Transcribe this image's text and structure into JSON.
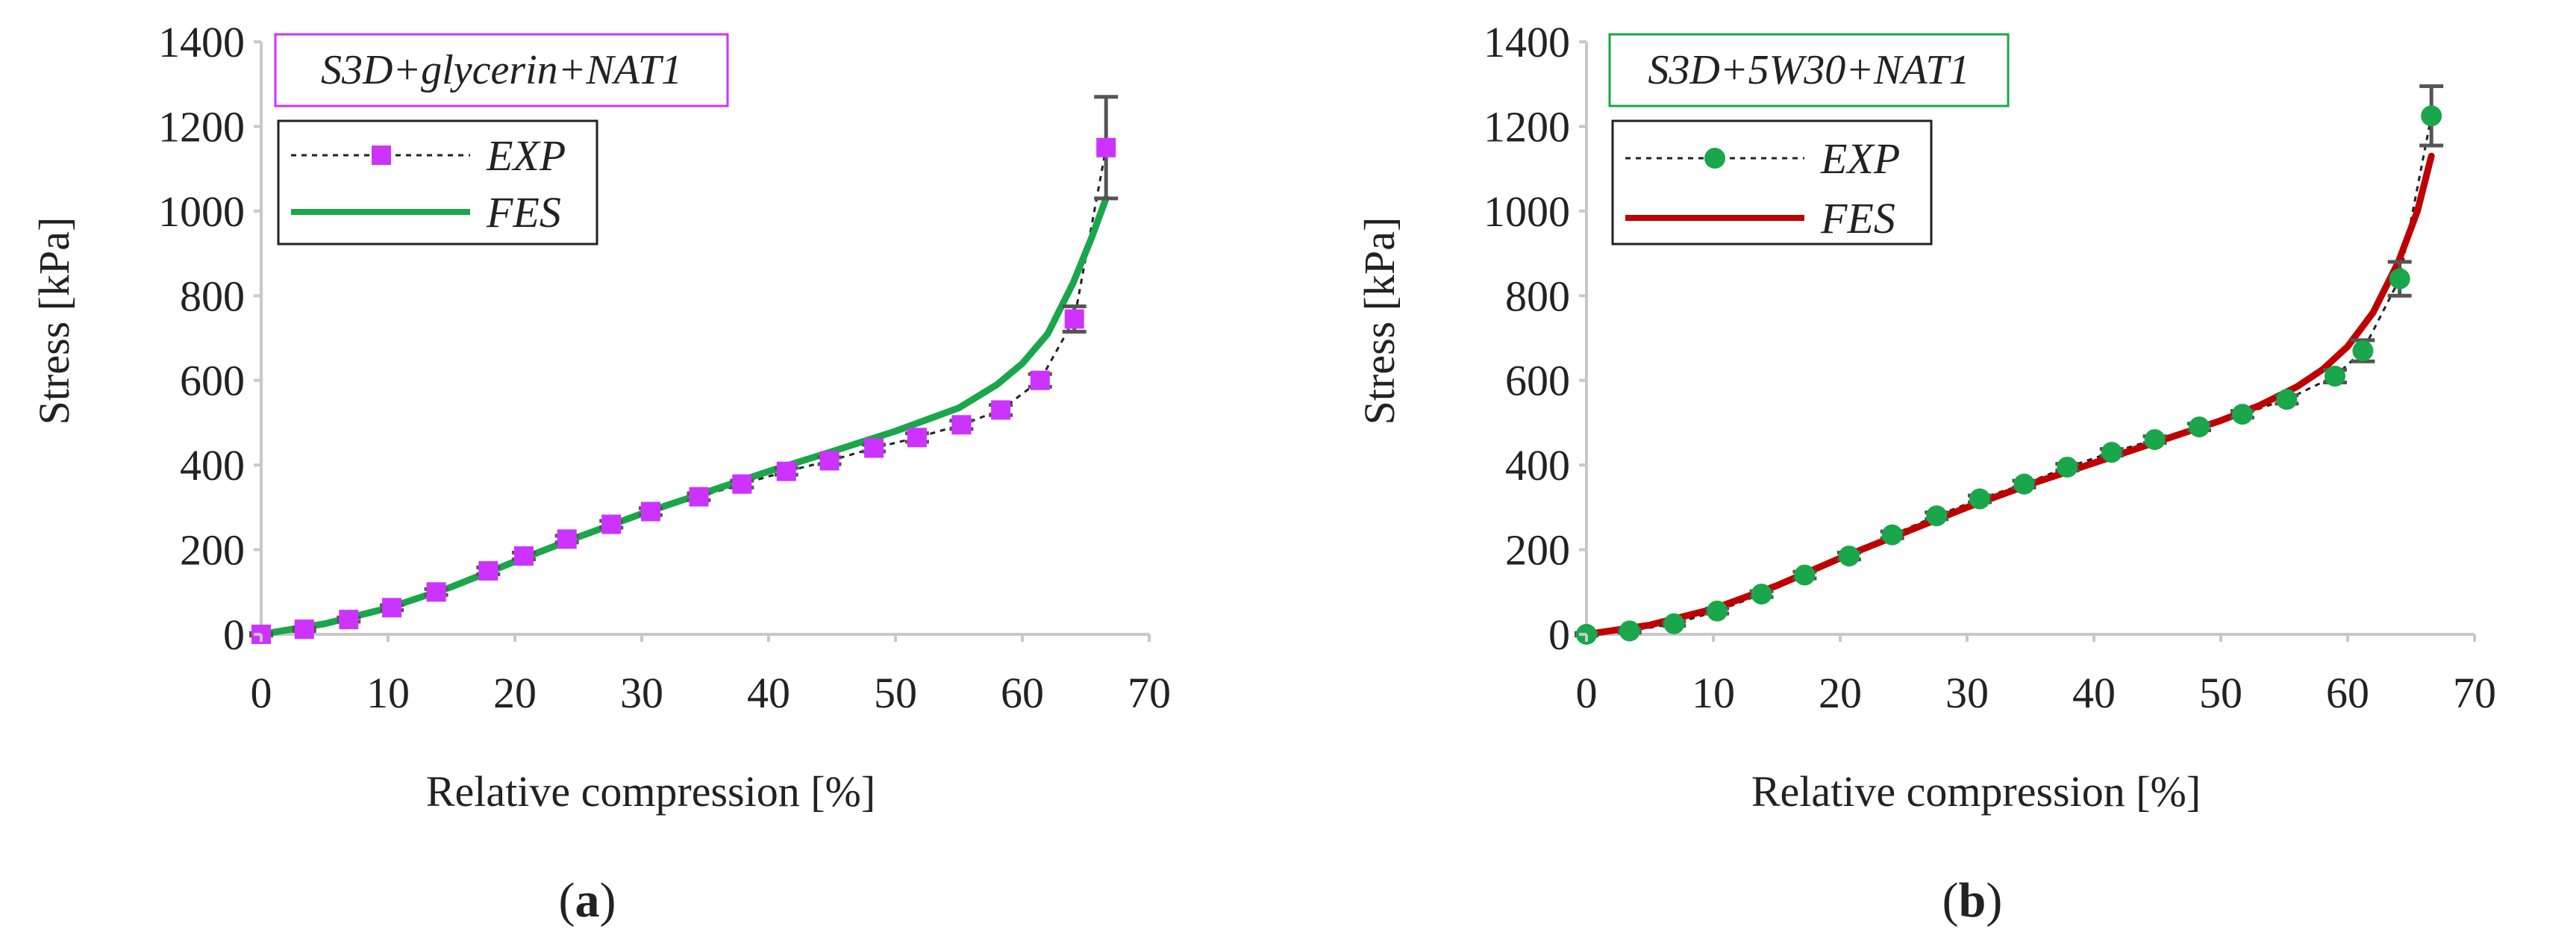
{
  "chart_data": [
    {
      "type": "line",
      "panel": "a",
      "caption_label": "a",
      "title": "S3D+glycerin+NAT1",
      "xlabel": "Relative compression [%]",
      "ylabel": "Stress [kPa]",
      "xlim": [
        0,
        70
      ],
      "ylim": [
        0,
        1400
      ],
      "xticks": [
        "0",
        "10",
        "20",
        "30",
        "40",
        "50",
        "60",
        "70"
      ],
      "yticks": [
        "0",
        "200",
        "400",
        "600",
        "800",
        "1000",
        "1200",
        "1400"
      ],
      "legend": [
        {
          "label": "EXP",
          "style": "dotted-square",
          "color": "#cc33ff"
        },
        {
          "label": "FES",
          "style": "solid-line",
          "color": "#1aa64a"
        }
      ],
      "title_border_color": "#cc33ff",
      "series": [
        {
          "name": "EXP",
          "color": "#cc33ff",
          "marker": "square",
          "x": [
            0,
            3.4,
            6.9,
            10.3,
            13.8,
            17.9,
            20.7,
            24.1,
            27.6,
            30.7,
            34.5,
            37.9,
            41.4,
            44.8,
            48.3,
            51.7,
            55.2,
            58.3,
            61.4,
            64.1,
            66.6
          ],
          "y": [
            0,
            12,
            35,
            63,
            100,
            150,
            185,
            225,
            260,
            290,
            325,
            355,
            385,
            410,
            440,
            465,
            495,
            530,
            600,
            745,
            1150
          ],
          "error": [
            3,
            4,
            5,
            6,
            7,
            8,
            8,
            8,
            8,
            8,
            8,
            8,
            8,
            8,
            8,
            10,
            10,
            12,
            15,
            30,
            120
          ]
        },
        {
          "name": "FES",
          "color": "#1aa64a",
          "marker": "none",
          "x": [
            0,
            5,
            10,
            15,
            20,
            25,
            30,
            35,
            40,
            45,
            50,
            55,
            58,
            60,
            62,
            64,
            65.5,
            66.6
          ],
          "y": [
            0,
            25,
            62,
            112,
            172,
            230,
            285,
            335,
            385,
            432,
            480,
            535,
            590,
            640,
            710,
            830,
            940,
            1030
          ]
        }
      ]
    },
    {
      "type": "line",
      "panel": "b",
      "caption_label": "b",
      "title": "S3D+5W30+NAT1",
      "xlabel": "Relative compression [%]",
      "ylabel": "Stress [kPa]",
      "xlim": [
        0,
        70
      ],
      "ylim": [
        0,
        1400
      ],
      "xticks": [
        "0",
        "10",
        "20",
        "30",
        "40",
        "50",
        "60",
        "70"
      ],
      "yticks": [
        "0",
        "200",
        "400",
        "600",
        "800",
        "1000",
        "1200",
        "1400"
      ],
      "legend": [
        {
          "label": "EXP",
          "style": "dotted-circle",
          "color": "#1aa64a"
        },
        {
          "label": "FES",
          "style": "solid-line",
          "color": "#c00000"
        }
      ],
      "title_border_color": "#1aa64a",
      "series": [
        {
          "name": "EXP",
          "color": "#1aa64a",
          "marker": "circle",
          "x": [
            0,
            3.4,
            6.9,
            10.3,
            13.8,
            17.2,
            20.7,
            24.1,
            27.6,
            31.0,
            34.5,
            37.9,
            41.4,
            44.8,
            48.3,
            51.7,
            55.2,
            59.0,
            61.2,
            64.1,
            66.6
          ],
          "y": [
            0,
            8,
            25,
            55,
            95,
            140,
            185,
            235,
            280,
            320,
            355,
            395,
            430,
            460,
            490,
            520,
            555,
            610,
            670,
            840,
            1225
          ],
          "error": [
            3,
            4,
            5,
            6,
            7,
            8,
            8,
            8,
            8,
            8,
            8,
            8,
            8,
            8,
            8,
            8,
            10,
            15,
            25,
            40,
            70
          ]
        },
        {
          "name": "FES",
          "color": "#c00000",
          "marker": "none",
          "x": [
            0,
            5,
            10,
            15,
            20,
            25,
            30,
            35,
            40,
            45,
            50,
            53,
            56,
            58,
            60,
            62,
            64,
            65.5,
            66.6
          ],
          "y": [
            0,
            22,
            60,
            115,
            180,
            240,
            300,
            355,
            405,
            455,
            505,
            540,
            585,
            625,
            680,
            760,
            880,
            1000,
            1130
          ]
        }
      ]
    }
  ]
}
